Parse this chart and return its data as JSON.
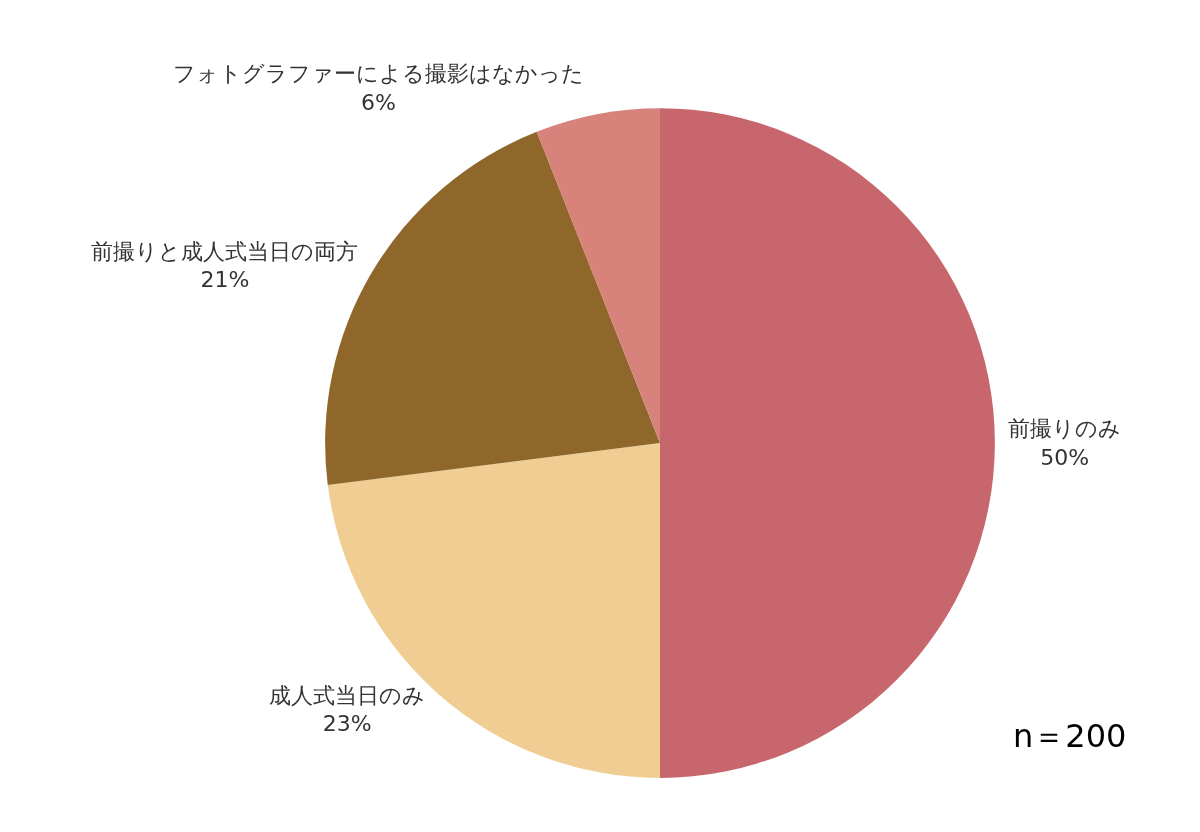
{
  "chart_data": {
    "type": "pie",
    "categories": [
      "前撮りのみ",
      "成人式当日のみ",
      "前撮りと成人式当日の両方",
      "フォトグラファーによる撮影はなかった"
    ],
    "values": [
      50,
      23,
      21,
      6
    ],
    "value_labels": [
      "50%",
      "23%",
      "21%",
      "6%"
    ],
    "colors": [
      "#c7666c",
      "#efcd93",
      "#8f672b",
      "#d7827b"
    ],
    "legend": false,
    "annotations": [
      "n＝200"
    ]
  }
}
